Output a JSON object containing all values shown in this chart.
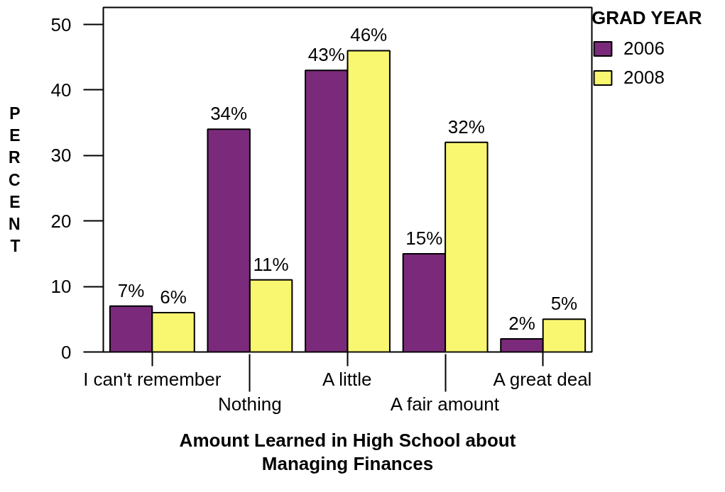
{
  "chart_data": {
    "type": "bar",
    "xlabel": "Amount Learned in High School about Managing Finances",
    "ylabel": "PERCENT",
    "legend_title": "GRAD YEAR",
    "categories": [
      "I can't remember",
      "Nothing",
      "A little",
      "A fair amount",
      "A great deal"
    ],
    "series": [
      {
        "name": "2006",
        "color": "#7b2a7b",
        "values": [
          7,
          34,
          43,
          15,
          2
        ],
        "value_labels": [
          "7%",
          "34%",
          "43%",
          "15%",
          "2%"
        ]
      },
      {
        "name": "2008",
        "color": "#f9f770",
        "values": [
          6,
          11,
          46,
          32,
          5
        ],
        "value_labels": [
          "6%",
          "11%",
          "46%",
          "32%",
          "5%"
        ]
      }
    ],
    "ylim": [
      0,
      52.6
    ],
    "yticks": [
      0,
      10,
      20,
      30,
      40,
      50
    ],
    "grid": false,
    "legend": "top right"
  }
}
